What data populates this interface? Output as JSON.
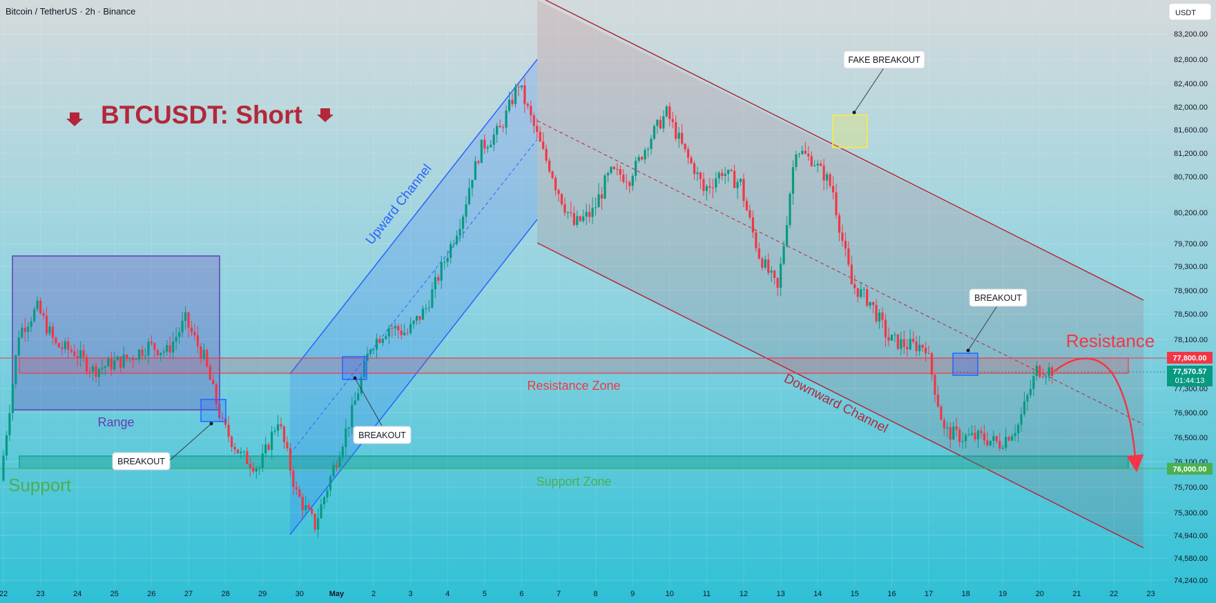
{
  "header": {
    "symbol_title": "Bitcoin / TetherUS · 2h · Binance",
    "currency_button": "USDT"
  },
  "price_axis": {
    "ticks": [
      "83,200.00",
      "82,800.00",
      "82,400.00",
      "82,000.00",
      "81,600.00",
      "81,200.00",
      "80,700.00",
      "80,200.00",
      "79,700.00",
      "79,300.00",
      "78,900.00",
      "78,500.00",
      "78,100.00",
      "77,300.00",
      "76,900.00",
      "76,500.00",
      "76,100.00",
      "75,700.00",
      "75,300.00",
      "74,940.00",
      "74,580.00",
      "74,240.00"
    ],
    "resistance_label": "77,800.00",
    "last_price_label": "77,570.57",
    "countdown_label": "01:44:13",
    "support_label": "76,000.00"
  },
  "time_axis": {
    "ticks": [
      "22",
      "23",
      "24",
      "25",
      "26",
      "27",
      "28",
      "29",
      "30",
      "May",
      "2",
      "3",
      "4",
      "5",
      "6",
      "7",
      "8",
      "9",
      "10",
      "11",
      "12",
      "13",
      "14",
      "15",
      "16",
      "17",
      "18",
      "19",
      "20",
      "21",
      "22",
      "23"
    ]
  },
  "annotations": {
    "headline": "BTCUSDT: Short",
    "upward_channel": "Upward Channel",
    "downward_channel": "Downward Channel",
    "range": "Range",
    "resistance_zone": "Resistance Zone",
    "support_zone": "Support Zone",
    "support": "Support",
    "resistance": "Resistance",
    "breakout_1": "BREAKOUT",
    "breakout_2": "BREAKOUT",
    "breakout_3": "BREAKOUT",
    "fake_breakout": "FAKE BREAKOUT"
  },
  "colors": {
    "bg_top": "#d4dadc",
    "bg_bottom": "#2ec0d6",
    "bull": "#089981",
    "bear": "#f23645",
    "upward_channel": "#2962ff",
    "downward_channel": "#b2283a",
    "range_box": "#673ab7",
    "support_zone": "#089981",
    "resistance_zone": "#f23645",
    "headline": "#b2283a",
    "support_text": "#4caf50",
    "fake_breakout_box": "#ffeb3b"
  },
  "chart_data": {
    "type": "candlestick",
    "title": "Bitcoin / TetherUS · 2h · Binance",
    "x_ticks": [
      "22",
      "23",
      "24",
      "25",
      "26",
      "27",
      "28",
      "29",
      "30",
      "May",
      "2",
      "3",
      "4",
      "5",
      "6",
      "7",
      "8",
      "9",
      "10",
      "11",
      "12",
      "13",
      "14",
      "15",
      "16",
      "17",
      "18",
      "19",
      "20",
      "21",
      "22",
      "23"
    ],
    "y_range": [
      74240,
      83200
    ],
    "y_ticks": [
      83200,
      82800,
      82400,
      82000,
      81600,
      81200,
      80700,
      80200,
      79700,
      79300,
      78900,
      78500,
      78100,
      77300,
      76900,
      76500,
      76100,
      75700,
      75300,
      74940,
      74580,
      74240
    ],
    "last_price": 77570.57,
    "resistance_level": 77800,
    "support_level": 76000,
    "series": [
      {
        "name": "BTCUSDT",
        "x": [
          22.0,
          22.5,
          23.0,
          23.5,
          24.0,
          24.5,
          25.0,
          25.5,
          26.0,
          26.5,
          27.0,
          27.5,
          28.0,
          28.5,
          29.0,
          29.5,
          30.0,
          30.5,
          31.0,
          31.5,
          32.0,
          32.5,
          33.0,
          33.5,
          34.0,
          34.5,
          35.0,
          35.5,
          36.0,
          36.5,
          37.0,
          37.5,
          38.0,
          38.5,
          39.0,
          39.5,
          40.0,
          40.5,
          41.0,
          41.5,
          42.0,
          42.5,
          43.0,
          43.5,
          44.0,
          44.5,
          45.0,
          45.5,
          46.0,
          46.5,
          47.0,
          47.5,
          48.0,
          48.5,
          49.0,
          49.5,
          50.0,
          50.5,
          51.0
        ],
        "close": [
          75800,
          78200,
          78600,
          78000,
          77900,
          77600,
          77700,
          77800,
          78000,
          77900,
          78400,
          77800,
          76700,
          76200,
          76000,
          76800,
          75600,
          75100,
          76000,
          76900,
          78000,
          78300,
          78200,
          78600,
          79400,
          80200,
          81300,
          81600,
          82400,
          81500,
          80600,
          80000,
          80200,
          80800,
          80700,
          81400,
          81900,
          81200,
          80500,
          80800,
          80600,
          79500,
          78900,
          81300,
          81000,
          80500,
          79000,
          78700,
          78100,
          78000,
          78000,
          76600,
          76500,
          76500,
          76400,
          76700,
          77600,
          77600,
          77600
        ]
      }
    ]
  }
}
